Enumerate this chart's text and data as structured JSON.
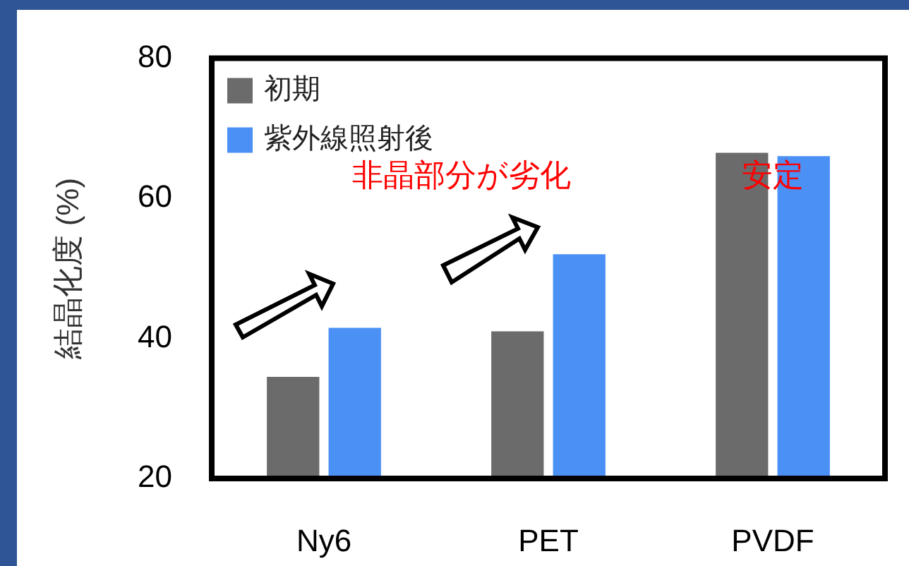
{
  "chart_data": {
    "type": "bar",
    "ylabel": "結晶化度 (%)",
    "categories": [
      "Ny6",
      "PET",
      "PVDF"
    ],
    "series": [
      {
        "name": "初期",
        "color": "#6b6b6b",
        "values": [
          34.5,
          41,
          66.5
        ]
      },
      {
        "name": "紫外線照射後",
        "color": "#4a90f5",
        "values": [
          41.5,
          52,
          66
        ]
      }
    ],
    "ylim": [
      20,
      80
    ],
    "yticks": [
      20,
      40,
      60,
      80
    ],
    "legend": "top left",
    "annotations": [
      "非晶部分が劣化",
      "安定"
    ]
  }
}
